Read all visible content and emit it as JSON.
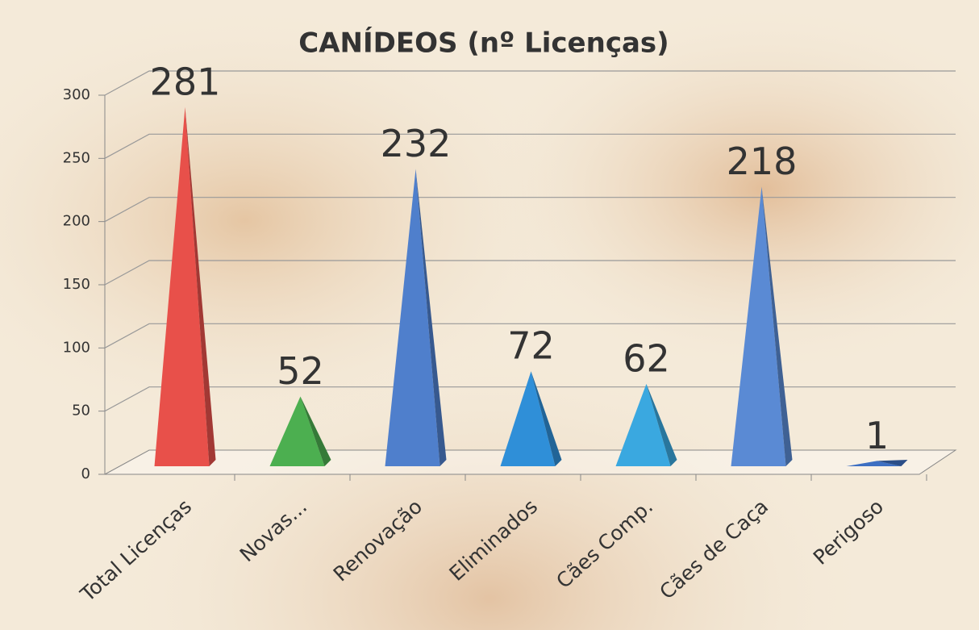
{
  "chart_data": {
    "type": "pyramid",
    "title": "CANÍDEOS (nº Licenças)",
    "categories": [
      "Total Licenças",
      "Novas...",
      "Renovação",
      "Eliminados",
      "Cães Comp.",
      "Cães de Caça",
      "Perigoso"
    ],
    "values": [
      281,
      52,
      232,
      72,
      62,
      218,
      1
    ],
    "colors": [
      "#e8504a",
      "#4caf50",
      "#4f7fcc",
      "#2f8fd8",
      "#3aa8e0",
      "#5a8ad4",
      "#3d6fc2"
    ],
    "ylim": [
      0,
      300
    ],
    "yticks": [
      0,
      50,
      100,
      150,
      200,
      250,
      300
    ],
    "grid": true
  }
}
